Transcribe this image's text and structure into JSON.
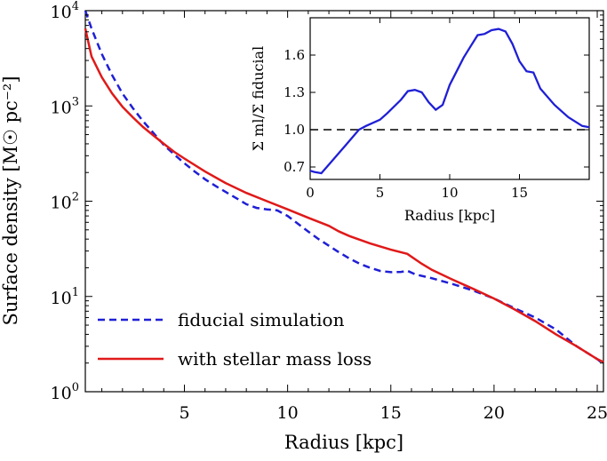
{
  "chart_data": [
    {
      "type": "line",
      "xlabel": "Radius [kpc]",
      "ylabel": "Surface density [M☉ pc⁻²]",
      "yscale": "log",
      "xlim": [
        0.2,
        25.3
      ],
      "ylim": [
        1,
        10000
      ],
      "xticks": [
        {
          "value": 5,
          "label": "5"
        },
        {
          "value": 10,
          "label": "10"
        },
        {
          "value": 15,
          "label": "15"
        },
        {
          "value": 20,
          "label": "20"
        },
        {
          "value": 25,
          "label": "25"
        }
      ],
      "yticks": [
        {
          "value": 1,
          "base": "10",
          "exp": "0"
        },
        {
          "value": 10,
          "base": "10",
          "exp": "1"
        },
        {
          "value": 100,
          "base": "10",
          "exp": "2"
        },
        {
          "value": 1000,
          "base": "10",
          "exp": "3"
        },
        {
          "value": 10000,
          "base": "10",
          "exp": "4"
        }
      ],
      "legend": {
        "placement": "lower-left",
        "entries": [
          {
            "label": "fiducial simulation",
            "color": "#1f1fd6",
            "style": "dashed"
          },
          {
            "label": "with stellar mass loss",
            "color": "#e01919",
            "style": "solid"
          }
        ]
      },
      "series": [
        {
          "name": "fiducial simulation",
          "color": "#1f1fd6",
          "style": "dashed",
          "x": [
            0.2,
            0.5,
            1.0,
            1.5,
            2.0,
            2.5,
            3.0,
            3.5,
            4.0,
            4.5,
            5.0,
            5.5,
            6.0,
            6.5,
            7.0,
            7.5,
            8.0,
            8.5,
            9.0,
            9.5,
            10.0,
            10.5,
            11.0,
            11.5,
            12.0,
            12.5,
            13.0,
            13.5,
            14.0,
            14.5,
            15.0,
            15.5,
            15.8,
            16.2,
            17.0,
            18.0,
            19.0,
            20.0,
            21.0,
            22.0,
            23.0,
            24.0,
            25.0,
            25.3
          ],
          "y": [
            10000,
            6500,
            3500,
            2100,
            1350,
            950,
            690,
            520,
            390,
            310,
            250,
            205,
            170,
            145,
            125,
            108,
            93,
            85,
            82,
            80,
            70,
            58,
            48,
            40,
            34,
            29,
            25,
            22,
            20,
            18.5,
            18,
            18.1,
            18.6,
            17,
            15.5,
            13.5,
            11.5,
            9.5,
            7.5,
            6.0,
            4.5,
            3.0,
            2.2,
            1.95
          ]
        },
        {
          "name": "with stellar mass loss",
          "color": "#e01919",
          "style": "solid",
          "x": [
            0.2,
            0.5,
            1.0,
            1.5,
            2.0,
            2.5,
            3.0,
            3.5,
            4.0,
            4.5,
            5.0,
            6.0,
            7.0,
            8.0,
            9.0,
            10.0,
            11.0,
            12.0,
            12.5,
            13.0,
            14.0,
            15.0,
            15.8,
            16.5,
            17.0,
            18.0,
            19.0,
            20.0,
            21.0,
            22.0,
            23.0,
            24.0,
            25.0,
            25.3
          ],
          "y": [
            6500,
            3300,
            2000,
            1350,
            980,
            760,
            600,
            490,
            400,
            330,
            280,
            205,
            155,
            122,
            100,
            82,
            67,
            55,
            48,
            43,
            36,
            31,
            28,
            22,
            19,
            15,
            12,
            9.5,
            7.3,
            5.5,
            4.0,
            3.0,
            2.2,
            2.05
          ]
        }
      ]
    },
    {
      "type": "line",
      "role": "inset",
      "xlabel": "Radius [kpc]",
      "ylabel": "Σ ml/Σ fiducial",
      "xlim": [
        0,
        20
      ],
      "ylim": [
        0.6,
        1.9
      ],
      "xticks": [
        {
          "value": 0,
          "label": "0"
        },
        {
          "value": 5,
          "label": "5"
        },
        {
          "value": 10,
          "label": "10"
        },
        {
          "value": 15,
          "label": "15"
        }
      ],
      "yticks": [
        {
          "value": 0.7,
          "label": "0.7"
        },
        {
          "value": 1.0,
          "label": "1.0"
        },
        {
          "value": 1.3,
          "label": "1.3"
        },
        {
          "value": 1.6,
          "label": "1.6"
        }
      ],
      "reference_line": {
        "y": 1.0,
        "style": "dashed",
        "color": "#000000"
      },
      "series": [
        {
          "name": "ratio",
          "color": "#1f1fd6",
          "style": "solid",
          "x": [
            0,
            0.3,
            0.8,
            1.5,
            2.5,
            3.5,
            4.0,
            5.0,
            5.5,
            6.5,
            7.0,
            7.5,
            8.0,
            8.5,
            9.0,
            9.5,
            10.0,
            11.0,
            11.5,
            12.0,
            12.5,
            13.0,
            13.5,
            14.0,
            14.5,
            15.0,
            15.5,
            16.0,
            16.5,
            17.5,
            18.5,
            19.5,
            20.0
          ],
          "y": [
            0.67,
            0.66,
            0.65,
            0.74,
            0.87,
            1.0,
            1.03,
            1.08,
            1.13,
            1.24,
            1.31,
            1.32,
            1.3,
            1.22,
            1.16,
            1.2,
            1.36,
            1.58,
            1.67,
            1.76,
            1.77,
            1.8,
            1.81,
            1.79,
            1.69,
            1.55,
            1.47,
            1.46,
            1.33,
            1.2,
            1.1,
            1.03,
            1.02
          ]
        }
      ]
    }
  ]
}
